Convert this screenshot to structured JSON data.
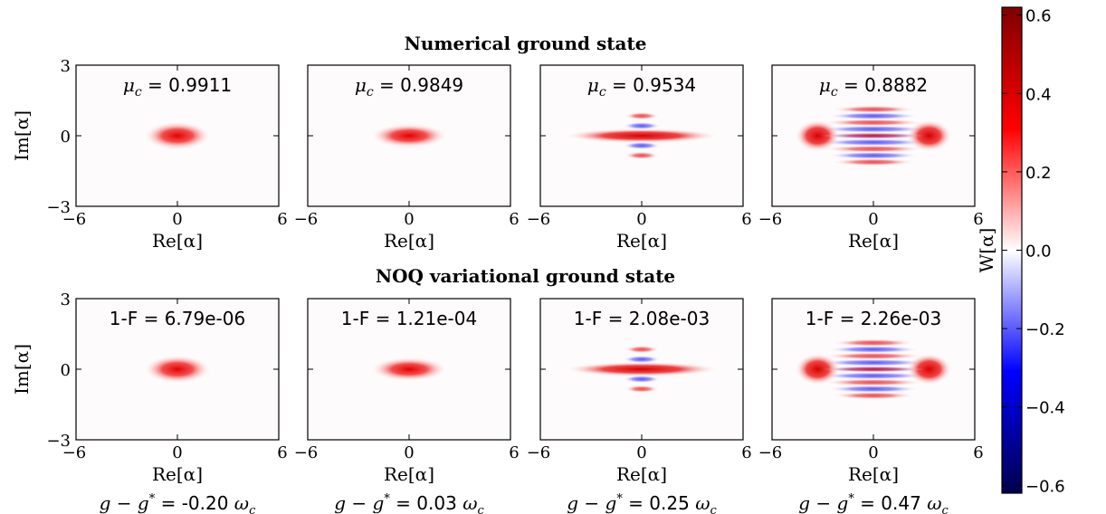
{
  "chart_data": {
    "type": "heatmap",
    "colorbar": {
      "label": "W[α]",
      "min": -0.62,
      "max": 0.62,
      "ticks": [
        -0.6,
        -0.4,
        -0.2,
        0.0,
        0.2,
        0.4,
        0.6
      ],
      "tick_labels": [
        "−0.6",
        "−0.4",
        "−0.2",
        "0.0",
        "0.2",
        "0.4",
        "0.6"
      ],
      "colormap": "seismic",
      "colors": {
        "neg_end": "#00004d",
        "neg": "#0000ff",
        "zero": "#ffffff",
        "pos": "#ff0000",
        "pos_end": "#800000"
      }
    },
    "xlabel": "Re[α]",
    "ylabel": "Im[α]",
    "xlim": [
      -6,
      6
    ],
    "ylim": [
      -3,
      3
    ],
    "x_ticks": [
      -6,
      0,
      6
    ],
    "x_tick_labels": [
      "−6",
      "0",
      "6"
    ],
    "y_ticks": [
      -3,
      0,
      3
    ],
    "y_tick_labels": [
      "−3",
      "0",
      "3"
    ],
    "rows": [
      {
        "title": "Numerical ground state",
        "panels": [
          {
            "label_var": "μ",
            "label_sub": "c",
            "label_rest": " = 0.9911",
            "lobe_x": 0.0,
            "width": 1.05,
            "squeeze": 0.4,
            "fringes": 0
          },
          {
            "label_var": "μ",
            "label_sub": "c",
            "label_rest": " = 0.9849",
            "lobe_x": 0.0,
            "width": 1.2,
            "squeeze": 0.34,
            "fringes": 0
          },
          {
            "label_var": "μ",
            "label_sub": "c",
            "label_rest": " = 0.9534",
            "lobe_x": 1.5,
            "width": 1.45,
            "squeeze": 0.22,
            "fringes": 1.1
          },
          {
            "label_var": "μ",
            "label_sub": "c",
            "label_rest": " = 0.8882",
            "lobe_x": 3.3,
            "width": 0.7,
            "squeeze": 0.42,
            "fringes": 3.2
          }
        ]
      },
      {
        "title": "NOQ variational ground state",
        "panels": [
          {
            "label_text": "1-F = 6.79e-06",
            "lobe_x": 0.0,
            "width": 1.05,
            "squeeze": 0.4,
            "fringes": 0
          },
          {
            "label_text": "1-F = 1.21e-04",
            "lobe_x": 0.0,
            "width": 1.2,
            "squeeze": 0.34,
            "fringes": 0
          },
          {
            "label_text": "1-F = 2.08e-03",
            "lobe_x": 1.5,
            "width": 1.45,
            "squeeze": 0.22,
            "fringes": 1.1
          },
          {
            "label_text": "1-F = 2.26e-03",
            "lobe_x": 3.3,
            "width": 0.7,
            "squeeze": 0.42,
            "fringes": 3.2
          }
        ]
      }
    ],
    "couplings": [
      {
        "value": "-0.20"
      },
      {
        "value": "0.03"
      },
      {
        "value": "0.25"
      },
      {
        "value": "0.47"
      }
    ],
    "coupling_label": {
      "g": "g",
      "minus": " − ",
      "gstar": "g",
      "star": "*",
      "eq": " = ",
      "omega": "ω",
      "sub": "c"
    }
  }
}
